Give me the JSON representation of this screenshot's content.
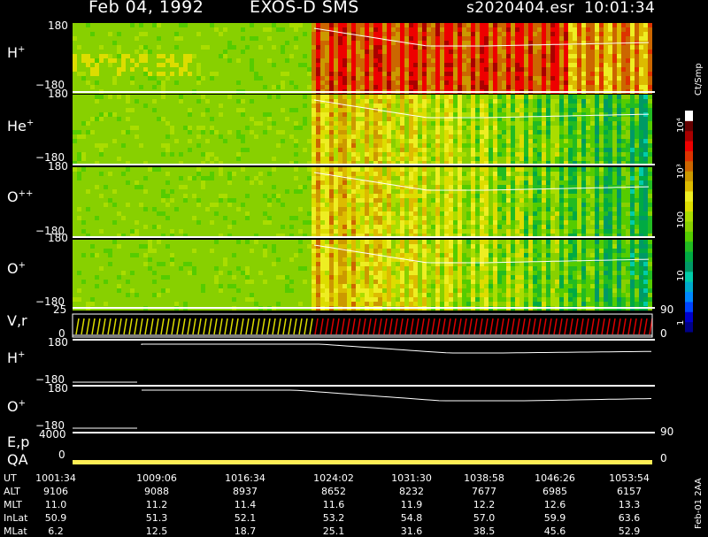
{
  "header": {
    "date": "Feb 04, 1992",
    "instrument": "EXOS-D SMS",
    "file": "s2020404.esr",
    "time": "10:01:34"
  },
  "colorbar": {
    "title": "Ct/Smp",
    "ticks": [
      {
        "label": "1",
        "value": 1
      },
      {
        "label": "10",
        "value": 10
      },
      {
        "label": "100",
        "value": 100
      },
      {
        "label": "10³",
        "value": 1000
      },
      {
        "label": "10⁴",
        "value": 10000
      }
    ],
    "colors": [
      "#000088",
      "#0000cc",
      "#0044ff",
      "#0088ff",
      "#00aacc",
      "#00ccaa",
      "#009966",
      "#00aa44",
      "#22bb22",
      "#55cc00",
      "#88d000",
      "#aadd00",
      "#dddd00",
      "#eeee22",
      "#ddbb00",
      "#cc9900",
      "#cc6600",
      "#dd3300",
      "#ee0000",
      "#aa0000",
      "#660000",
      "#ffffff"
    ]
  },
  "panels": {
    "hplus": {
      "label": "H",
      "sup": "+",
      "top": "180",
      "bottom": "−180"
    },
    "heplus": {
      "label": "He",
      "sup": "+",
      "top": "180",
      "bottom": "−180"
    },
    "oplusplus": {
      "label": "O",
      "sup": "++",
      "top": "180",
      "bottom": "−180"
    },
    "oplus": {
      "label": "O",
      "sup": "+",
      "top": "180",
      "bottom": "−180"
    },
    "vr": {
      "label": "V,r",
      "top": "25",
      "bottom": "0",
      "right_top": "90",
      "right_bottom": "0"
    },
    "hplus_line": {
      "label": "H",
      "sup": "+",
      "top": "180",
      "bottom": "−180"
    },
    "oplus_line": {
      "label": "O",
      "sup": "+",
      "top": "180",
      "bottom": "−180",
      "right": "90"
    },
    "ep": {
      "label": "E,p",
      "value": "4000",
      "qa_label": "QA",
      "qa_value": "0",
      "right": "0"
    }
  },
  "table": {
    "rows": [
      {
        "name": "UT",
        "values": [
          "1001:34",
          "1009:06",
          "1016:34",
          "1024:02",
          "1031:30",
          "1038:58",
          "1046:26",
          "1053:54"
        ]
      },
      {
        "name": "ALT",
        "values": [
          "9106",
          "9088",
          "8937",
          "8652",
          "8232",
          "7677",
          "6985",
          "6157"
        ]
      },
      {
        "name": "MLT",
        "values": [
          "11.0",
          "11.2",
          "11.4",
          "11.6",
          "11.9",
          "12.2",
          "12.6",
          "13.3"
        ]
      },
      {
        "name": "InLat",
        "values": [
          "50.9",
          "51.3",
          "52.1",
          "53.2",
          "54.8",
          "57.0",
          "59.9",
          "63.6"
        ]
      },
      {
        "name": "MLat",
        "values": [
          "6.2",
          "12.5",
          "18.7",
          "25.1",
          "31.6",
          "38.5",
          "45.6",
          "52.9"
        ]
      }
    ]
  },
  "footer_vertical": "Feb-01 2AA"
}
